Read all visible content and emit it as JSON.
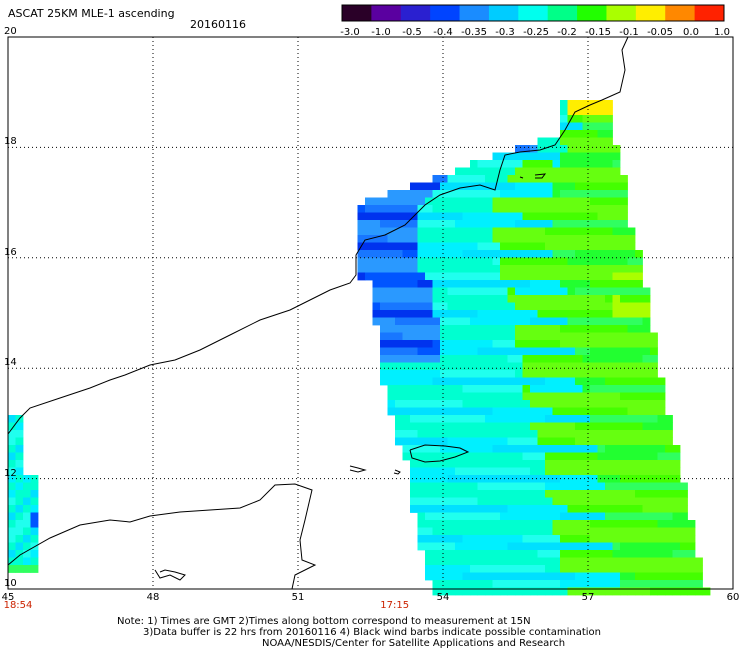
{
  "title": "ASCAT 25KM MLE-1 ascending",
  "date": "20160116",
  "color_scale": {
    "labels": [
      "-3.0",
      "-1.0",
      "-0.5",
      "-0.4",
      "-0.35",
      "-0.3",
      "-0.25",
      "-0.2",
      "-0.15",
      "-0.1",
      "-0.05",
      "0.0",
      "1.0"
    ],
    "colors": [
      "#2a0028",
      "#5a00a0",
      "#2a20d0",
      "#0044ff",
      "#1a8cff",
      "#00ccff",
      "#00ffee",
      "#00ff88",
      "#22ff00",
      "#aaff00",
      "#ffee00",
      "#ff8800",
      "#ff2200"
    ]
  },
  "map": {
    "lon_labels": [
      "45",
      "48",
      "51",
      "54",
      "57",
      "60"
    ],
    "lat_labels": [
      "20",
      "18",
      "16",
      "14",
      "12",
      "10"
    ],
    "time_labels": [
      {
        "text": "18:54",
        "lon": 45
      },
      {
        "text": "17:15",
        "lon": 53
      }
    ],
    "lon_range": [
      45,
      60
    ],
    "lat_range": [
      10,
      20
    ],
    "grid": "dotted"
  },
  "notes": {
    "line1": "Note: 1) Times are GMT 2)Times along bottom correspond to measurement at 15N",
    "line2": "3)Data buffer is 22 hrs from 20160116 4) Black wind barbs indicate possible contamination",
    "line3": "NOAA/NESDIS/Center for Satellite Applications and Research"
  }
}
